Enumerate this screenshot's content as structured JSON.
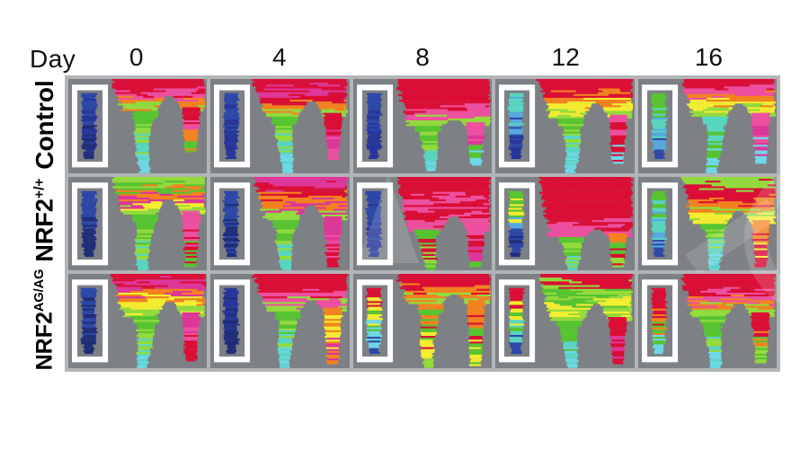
{
  "figure": {
    "header": {
      "day_label": "Day",
      "days": [
        "0",
        "4",
        "8",
        "12",
        "16"
      ]
    },
    "rows": [
      {
        "base": "Control",
        "sup": ""
      },
      {
        "base": "NRF2",
        "sup": "+/+"
      },
      {
        "base": "NRF2",
        "sup": "AG/AG"
      }
    ],
    "colors": {
      "page_bg": "#ffffff",
      "panel_bg": "#7d8084",
      "frame": "#b2b5b7",
      "reference_box": "#ffffff",
      "text": "#000000",
      "watermark": "rgba(255,255,255,0.16)"
    },
    "panels": [
      {
        "group": "Control",
        "day": "0",
        "depth": 0.34,
        "arch": 0.16,
        "body": [
          "#dc0d35",
          "#dc0d35",
          "#ef4fa0",
          "#f5821e",
          "#93dc3c"
        ],
        "lleg": [
          "#57c531",
          "#93dc3c",
          "#59d6c3",
          "#6fd8e8"
        ],
        "llen": 1.0,
        "rleg": [
          "#dc0d35",
          "#ef4fa0",
          "#f5821e",
          "#57c531"
        ],
        "rlen": 0.78,
        "ref": [
          "#2d47a8",
          "#27359b",
          "#1f2d7a"
        ]
      },
      {
        "group": "Control",
        "day": "4",
        "depth": 0.4,
        "arch": 0.22,
        "body": [
          "#dc0d35",
          "#e0359a",
          "#dc0d35",
          "#f5821e",
          "#93dc3c"
        ],
        "lleg": [
          "#57c531",
          "#93dc3c",
          "#59d6c3",
          "#6fd8e8"
        ],
        "llen": 1.0,
        "rleg": [
          "#dc0d35",
          "#e0359a",
          "#ef4fa0"
        ],
        "rlen": 0.85,
        "ref": [
          "#2d47a8",
          "#27359b"
        ]
      },
      {
        "group": "Control",
        "day": "8",
        "depth": 0.5,
        "arch": 0.42,
        "body": [
          "#dc0d35",
          "#dc0d35",
          "#dc0d35",
          "#ef4fa0",
          "#93dc3c"
        ],
        "lleg": [
          "#57c531",
          "#93dc3c",
          "#59d6c3",
          "#6fd8e8"
        ],
        "llen": 0.98,
        "rleg": [
          "#ef4fa0",
          "#e0359a",
          "#57c531",
          "#6fd8e8"
        ],
        "rlen": 0.92,
        "ref": [
          "#2d47a8",
          "#27359b"
        ]
      },
      {
        "group": "Control",
        "day": "12",
        "depth": 0.42,
        "arch": 0.25,
        "body": [
          "#dc0d35",
          "#dc0d35",
          "#f5821e",
          "#f5ee2f",
          "#93dc3c"
        ],
        "lleg": [
          "#57c531",
          "#93dc3c",
          "#59d6c3",
          "#6fd8e8"
        ],
        "llen": 1.0,
        "rleg": [
          "#ef4fa0",
          "#dc0d35",
          "#6fd8e8"
        ],
        "rlen": 0.9,
        "ref": [
          "#59d6c3",
          "#55aadf",
          "#2d47a8",
          "#27359b"
        ]
      },
      {
        "group": "Control",
        "day": "16",
        "depth": 0.4,
        "arch": 0.24,
        "body": [
          "#dc0d35",
          "#ef4fa0",
          "#f5821e",
          "#f5ee2f",
          "#93dc3c"
        ],
        "lleg": [
          "#59d6c3",
          "#57c531",
          "#6fd8e8"
        ],
        "llen": 1.0,
        "rleg": [
          "#ef4fa0",
          "#e0359a",
          "#6fd8e8"
        ],
        "rlen": 0.9,
        "ref": [
          "#57c531",
          "#59d6c3",
          "#55aadf",
          "#2d47a8"
        ]
      },
      {
        "group": "NRF2+/+",
        "day": "0",
        "depth": 0.4,
        "arch": 0.22,
        "body": [
          "#93dc3c",
          "#57c531",
          "#f5821e",
          "#e0359a",
          "#f5ee2f",
          "#93dc3c"
        ],
        "lleg": [
          "#57c531",
          "#93dc3c",
          "#59d6c3"
        ],
        "llen": 1.0,
        "rleg": [
          "#ef4fa0",
          "#dc0d35",
          "#57c531"
        ],
        "rlen": 0.95,
        "ref": [
          "#2d47a8",
          "#1f2d7a"
        ]
      },
      {
        "group": "NRF2+/+",
        "day": "4",
        "depth": 0.46,
        "arch": 0.28,
        "body": [
          "#e0359a",
          "#dc0d35",
          "#f5821e",
          "#e0359a",
          "#93dc3c"
        ],
        "lleg": [
          "#57c531",
          "#93dc3c",
          "#59d6c3"
        ],
        "llen": 1.0,
        "rleg": [
          "#e0359a",
          "#ef4fa0",
          "#dc0d35"
        ],
        "rlen": 0.95,
        "ref": [
          "#2d47a8",
          "#1f2d7a"
        ]
      },
      {
        "group": "NRF2+/+",
        "day": "8",
        "depth": 0.56,
        "arch": 0.4,
        "body": [
          "#dc0d35",
          "#dc0d35",
          "#ef4fa0",
          "#dc0d35",
          "#ef4fa0"
        ],
        "lleg": [
          "#57c531",
          "#dc0d35",
          "#93dc3c",
          "#57c531"
        ],
        "llen": 1.0,
        "rleg": [
          "#ef4fa0",
          "#dc0d35",
          "#e0359a",
          "#57c531"
        ],
        "rlen": 0.95,
        "ref": [
          "#2d47a8",
          "#27359b"
        ]
      },
      {
        "group": "NRF2+/+",
        "day": "12",
        "depth": 0.64,
        "arch": 0.55,
        "body": [
          "#dc0d35",
          "#dc0d35",
          "#dc0d35",
          "#dc0d35",
          "#ef4fa0"
        ],
        "lleg": [
          "#57c531",
          "#93dc3c",
          "#59d6c3"
        ],
        "llen": 1.0,
        "rleg": [
          "#f5821e",
          "#57c531",
          "#dc0d35",
          "#93dc3c"
        ],
        "rlen": 0.95,
        "ref": [
          "#57c531",
          "#f5ee2f",
          "#55aadf",
          "#2d47a8",
          "#1f2d7a"
        ]
      },
      {
        "group": "NRF2+/+",
        "day": "16",
        "depth": 0.5,
        "arch": 0.35,
        "body": [
          "#93dc3c",
          "#dc0d35",
          "#dc0d35",
          "#f5821e",
          "#93dc3c",
          "#f5ee2f"
        ],
        "lleg": [
          "#57c531",
          "#93dc3c",
          "#59d6c3",
          "#6fd8e8"
        ],
        "llen": 1.0,
        "rleg": [
          "#f5821e",
          "#dc0d35",
          "#f5ee2f",
          "#dc0d35"
        ],
        "rlen": 0.95,
        "ref": [
          "#57c531",
          "#59d6c3",
          "#55aadf",
          "#2d47a8"
        ]
      },
      {
        "group": "NRF2AG/AG",
        "day": "0",
        "depth": 0.45,
        "arch": 0.28,
        "body": [
          "#dc0d35",
          "#e0359a",
          "#f5821e",
          "#f5ee2f",
          "#93dc3c"
        ],
        "lleg": [
          "#57c531",
          "#93dc3c",
          "#59d6c3",
          "#6fd8e8"
        ],
        "llen": 1.0,
        "rleg": [
          "#e0359a",
          "#ef4fa0",
          "#dc0d35"
        ],
        "rlen": 0.92,
        "ref": [
          "#2d47a8",
          "#1f2d7a"
        ]
      },
      {
        "group": "NRF2AG/AG",
        "day": "4",
        "depth": 0.4,
        "arch": 0.26,
        "body": [
          "#dc0d35",
          "#dc0d35",
          "#ef4fa0",
          "#93dc3c"
        ],
        "lleg": [
          "#57c531",
          "#93dc3c",
          "#59d6c3",
          "#6fd8e8"
        ],
        "llen": 1.0,
        "rleg": [
          "#f5821e",
          "#f5ee2f",
          "#e0359a",
          "#f5821e"
        ],
        "rlen": 0.95,
        "ref": [
          "#27359b",
          "#1f2d7a"
        ]
      },
      {
        "group": "NRF2AG/AG",
        "day": "8",
        "depth": 0.32,
        "arch": 0.2,
        "body": [
          "#dc0d35",
          "#dc0d35",
          "#f5821e",
          "#93dc3c"
        ],
        "lleg": [
          "#f5821e",
          "#57c531",
          "#dc0d35",
          "#f5ee2f",
          "#93dc3c"
        ],
        "llen": 1.0,
        "rleg": [
          "#f5821e",
          "#dc0d35",
          "#57c531",
          "#f5ee2f"
        ],
        "rlen": 0.98,
        "ref": [
          "#dc0d35",
          "#f5ee2f",
          "#57c531",
          "#6fd8e8",
          "#2d47a8"
        ]
      },
      {
        "group": "NRF2AG/AG",
        "day": "12",
        "depth": 0.5,
        "arch": 0.3,
        "body": [
          "#dc0d35",
          "#93dc3c",
          "#57c531",
          "#f5ee2f",
          "#93dc3c"
        ],
        "lleg": [
          "#57c531",
          "#59d6c3",
          "#6fd8e8"
        ],
        "llen": 1.0,
        "rleg": [
          "#dc0d35",
          "#e0359a",
          "#dc0d35"
        ],
        "rlen": 0.95,
        "ref": [
          "#dc0d35",
          "#f5ee2f",
          "#57c531",
          "#59d6c3",
          "#2d47a8"
        ]
      },
      {
        "group": "NRF2AG/AG",
        "day": "16",
        "depth": 0.45,
        "arch": 0.3,
        "body": [
          "#dc0d35",
          "#dc0d35",
          "#ef4fa0",
          "#f5821e",
          "#93dc3c"
        ],
        "lleg": [
          "#57c531",
          "#93dc3c",
          "#59d6c3",
          "#6fd8e8"
        ],
        "llen": 1.0,
        "rleg": [
          "#dc0d35",
          "#f5821e",
          "#57c531",
          "#93dc3c"
        ],
        "rlen": 0.95,
        "ref": [
          "#dc0d35",
          "#dc0d35",
          "#f5821e",
          "#57c531",
          "#6fd8e8"
        ]
      }
    ]
  }
}
